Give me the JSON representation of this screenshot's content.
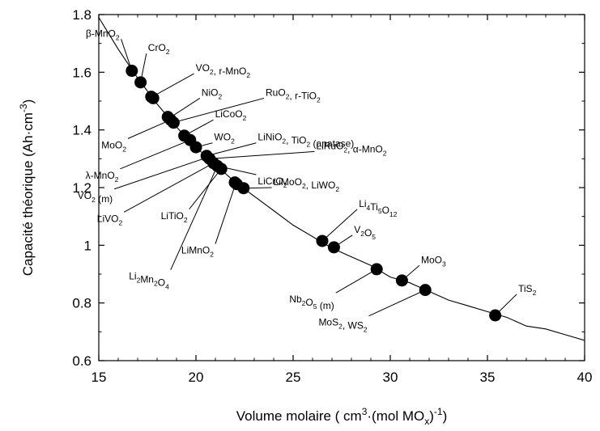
{
  "chart_data": {
    "type": "scatter",
    "title": "",
    "xlabel": "Volume molaire ( cm³·(mol MOₓ)⁻¹)",
    "ylabel": "Capacité théorique (Ah·cm⁻³)",
    "xlim": [
      15,
      40
    ],
    "ylim": [
      0.6,
      1.8
    ],
    "x_ticks": [
      15,
      20,
      25,
      30,
      35,
      40
    ],
    "x_tick_labels": [
      "15",
      "20",
      "25",
      "30",
      "35",
      "40"
    ],
    "y_ticks": [
      0.6,
      0.8,
      1,
      1.2,
      1.4,
      1.6,
      1.8
    ],
    "y_tick_labels": [
      "0.6",
      "0.8",
      "1",
      "1.2",
      "1.4",
      "1.6",
      "1.8"
    ],
    "grid": false,
    "curve": {
      "description": "fit curve y ≈ 26.9 / x",
      "x": [
        15,
        16,
        17,
        18,
        19,
        20,
        21,
        22,
        23,
        24,
        25,
        26,
        27,
        28,
        29,
        30,
        31,
        32,
        33,
        34,
        35,
        36,
        37,
        38,
        39,
        40
      ],
      "y": [
        1.79,
        1.68,
        1.58,
        1.49,
        1.41,
        1.34,
        1.28,
        1.22,
        1.17,
        1.12,
        1.07,
        1.03,
        0.99,
        0.96,
        0.93,
        0.89,
        0.87,
        0.84,
        0.81,
        0.79,
        0.77,
        0.75,
        0.72,
        0.71,
        0.69,
        0.67
      ]
    },
    "points": [
      {
        "x": 16.7,
        "y": 1.605
      },
      {
        "x": 17.15,
        "y": 1.565
      },
      {
        "x": 17.7,
        "y": 1.515
      },
      {
        "x": 17.8,
        "y": 1.51
      },
      {
        "x": 18.55,
        "y": 1.445
      },
      {
        "x": 18.7,
        "y": 1.435
      },
      {
        "x": 18.85,
        "y": 1.425
      },
      {
        "x": 19.4,
        "y": 1.38
      },
      {
        "x": 19.7,
        "y": 1.365
      },
      {
        "x": 20.0,
        "y": 1.34
      },
      {
        "x": 20.55,
        "y": 1.31
      },
      {
        "x": 20.7,
        "y": 1.3
      },
      {
        "x": 20.9,
        "y": 1.285
      },
      {
        "x": 21.1,
        "y": 1.275
      },
      {
        "x": 21.3,
        "y": 1.265
      },
      {
        "x": 22.0,
        "y": 1.218
      },
      {
        "x": 22.1,
        "y": 1.212
      },
      {
        "x": 22.45,
        "y": 1.198
      },
      {
        "x": 26.5,
        "y": 1.015
      },
      {
        "x": 27.1,
        "y": 0.993
      },
      {
        "x": 29.3,
        "y": 0.917
      },
      {
        "x": 30.6,
        "y": 0.878
      },
      {
        "x": 31.8,
        "y": 0.845
      },
      {
        "x": 35.4,
        "y": 0.757
      }
    ],
    "annotations": [
      {
        "label": "β-MnO2",
        "point_x": 16.7,
        "point_y": 1.605,
        "text_x": 16.15,
        "text_y": 1.715,
        "subs": [
          "2"
        ]
      },
      {
        "label": "CrO2",
        "point_x": 17.15,
        "point_y": 1.565,
        "text_x": 17.45,
        "text_y": 1.665,
        "subs": [
          "2"
        ]
      },
      {
        "label": "VO2, r-MnO2",
        "point_x": 17.75,
        "point_y": 1.515,
        "text_x": 19.9,
        "text_y": 1.595,
        "subs": [
          "2",
          "2"
        ]
      },
      {
        "label": "NiO2",
        "point_x": 18.6,
        "point_y": 1.44,
        "text_x": 20.2,
        "text_y": 1.51,
        "subs": [
          "2"
        ]
      },
      {
        "label": "RuO2, r-TiO2",
        "point_x": 18.8,
        "point_y": 1.425,
        "text_x": 23.5,
        "text_y": 1.51,
        "subs": [
          "2",
          "2"
        ]
      },
      {
        "label": "MoO2",
        "point_x": 18.7,
        "point_y": 1.435,
        "text_x": 16.5,
        "text_y": 1.37,
        "subs": [
          "2"
        ]
      },
      {
        "label": "LiCoO2",
        "point_x": 19.4,
        "point_y": 1.38,
        "text_x": 20.9,
        "text_y": 1.435,
        "subs": [
          "2"
        ]
      },
      {
        "label": "λ-MnO2",
        "point_x": 19.7,
        "point_y": 1.365,
        "text_x": 16.1,
        "text_y": 1.265,
        "subs": [
          "2"
        ]
      },
      {
        "label": "WO2",
        "point_x": 20.0,
        "point_y": 1.34,
        "text_x": 20.85,
        "text_y": 1.355,
        "subs": [
          "2"
        ]
      },
      {
        "label": "LiNiO2, TiO2 (anatase)",
        "point_x": 20.55,
        "point_y": 1.31,
        "text_x": 23.1,
        "text_y": 1.355,
        "subs": [
          "2",
          "2"
        ]
      },
      {
        "label": "LiRuO2, α-MnO2",
        "point_x": 20.7,
        "point_y": 1.3,
        "text_x": 26.1,
        "text_y": 1.325,
        "subs": [
          "2",
          "2"
        ]
      },
      {
        "label": "VO2 (m)",
        "point_x": 20.6,
        "point_y": 1.305,
        "text_x": 15.8,
        "text_y": 1.195,
        "subs": [
          "2"
        ]
      },
      {
        "label": "LiCrO2",
        "point_x": 21.1,
        "point_y": 1.275,
        "text_x": 23.1,
        "text_y": 1.245,
        "subs": [
          "2"
        ]
      },
      {
        "label": "LiVO2",
        "point_x": 20.9,
        "point_y": 1.285,
        "text_x": 16.3,
        "text_y": 1.115,
        "subs": [
          "2"
        ]
      },
      {
        "label": "LiTiO2",
        "point_x": 21.3,
        "point_y": 1.265,
        "text_x": 19.65,
        "text_y": 1.125,
        "subs": [
          "2"
        ]
      },
      {
        "label": "LiMoO2, LiWO2",
        "point_x": 22.45,
        "point_y": 1.198,
        "text_x": 23.9,
        "text_y": 1.2,
        "subs": [
          "2",
          "2"
        ]
      },
      {
        "label": "LiMnO2",
        "point_x": 22.05,
        "point_y": 1.215,
        "text_x": 21.0,
        "text_y": 1.005,
        "subs": [
          "2"
        ]
      },
      {
        "label": "Li2Mn2O4",
        "point_x": 21.1,
        "point_y": 1.275,
        "text_x": 18.7,
        "text_y": 0.915,
        "subs": [
          "2",
          "2",
          "4"
        ]
      },
      {
        "label": "Li4Ti5O12",
        "point_x": 26.5,
        "point_y": 1.015,
        "text_x": 28.3,
        "text_y": 1.125,
        "subs": [
          "4",
          "5",
          "12"
        ]
      },
      {
        "label": "V2O5",
        "point_x": 27.1,
        "point_y": 0.993,
        "text_x": 28.05,
        "text_y": 1.035,
        "subs": [
          "2",
          "5"
        ]
      },
      {
        "label": "Nb2O5 (m)",
        "point_x": 29.3,
        "point_y": 0.917,
        "text_x": 27.2,
        "text_y": 0.835,
        "subs": [
          "2",
          "5"
        ]
      },
      {
        "label": "MoO3",
        "point_x": 30.6,
        "point_y": 0.878,
        "text_x": 31.5,
        "text_y": 0.93,
        "subs": [
          "3"
        ]
      },
      {
        "label": "MoS2, WS2",
        "point_x": 31.8,
        "point_y": 0.845,
        "text_x": 28.9,
        "text_y": 0.755,
        "subs": [
          "2",
          "2"
        ]
      },
      {
        "label": "TiS2",
        "point_x": 35.4,
        "point_y": 0.757,
        "text_x": 36.5,
        "text_y": 0.83,
        "subs": [
          "2"
        ]
      }
    ]
  }
}
